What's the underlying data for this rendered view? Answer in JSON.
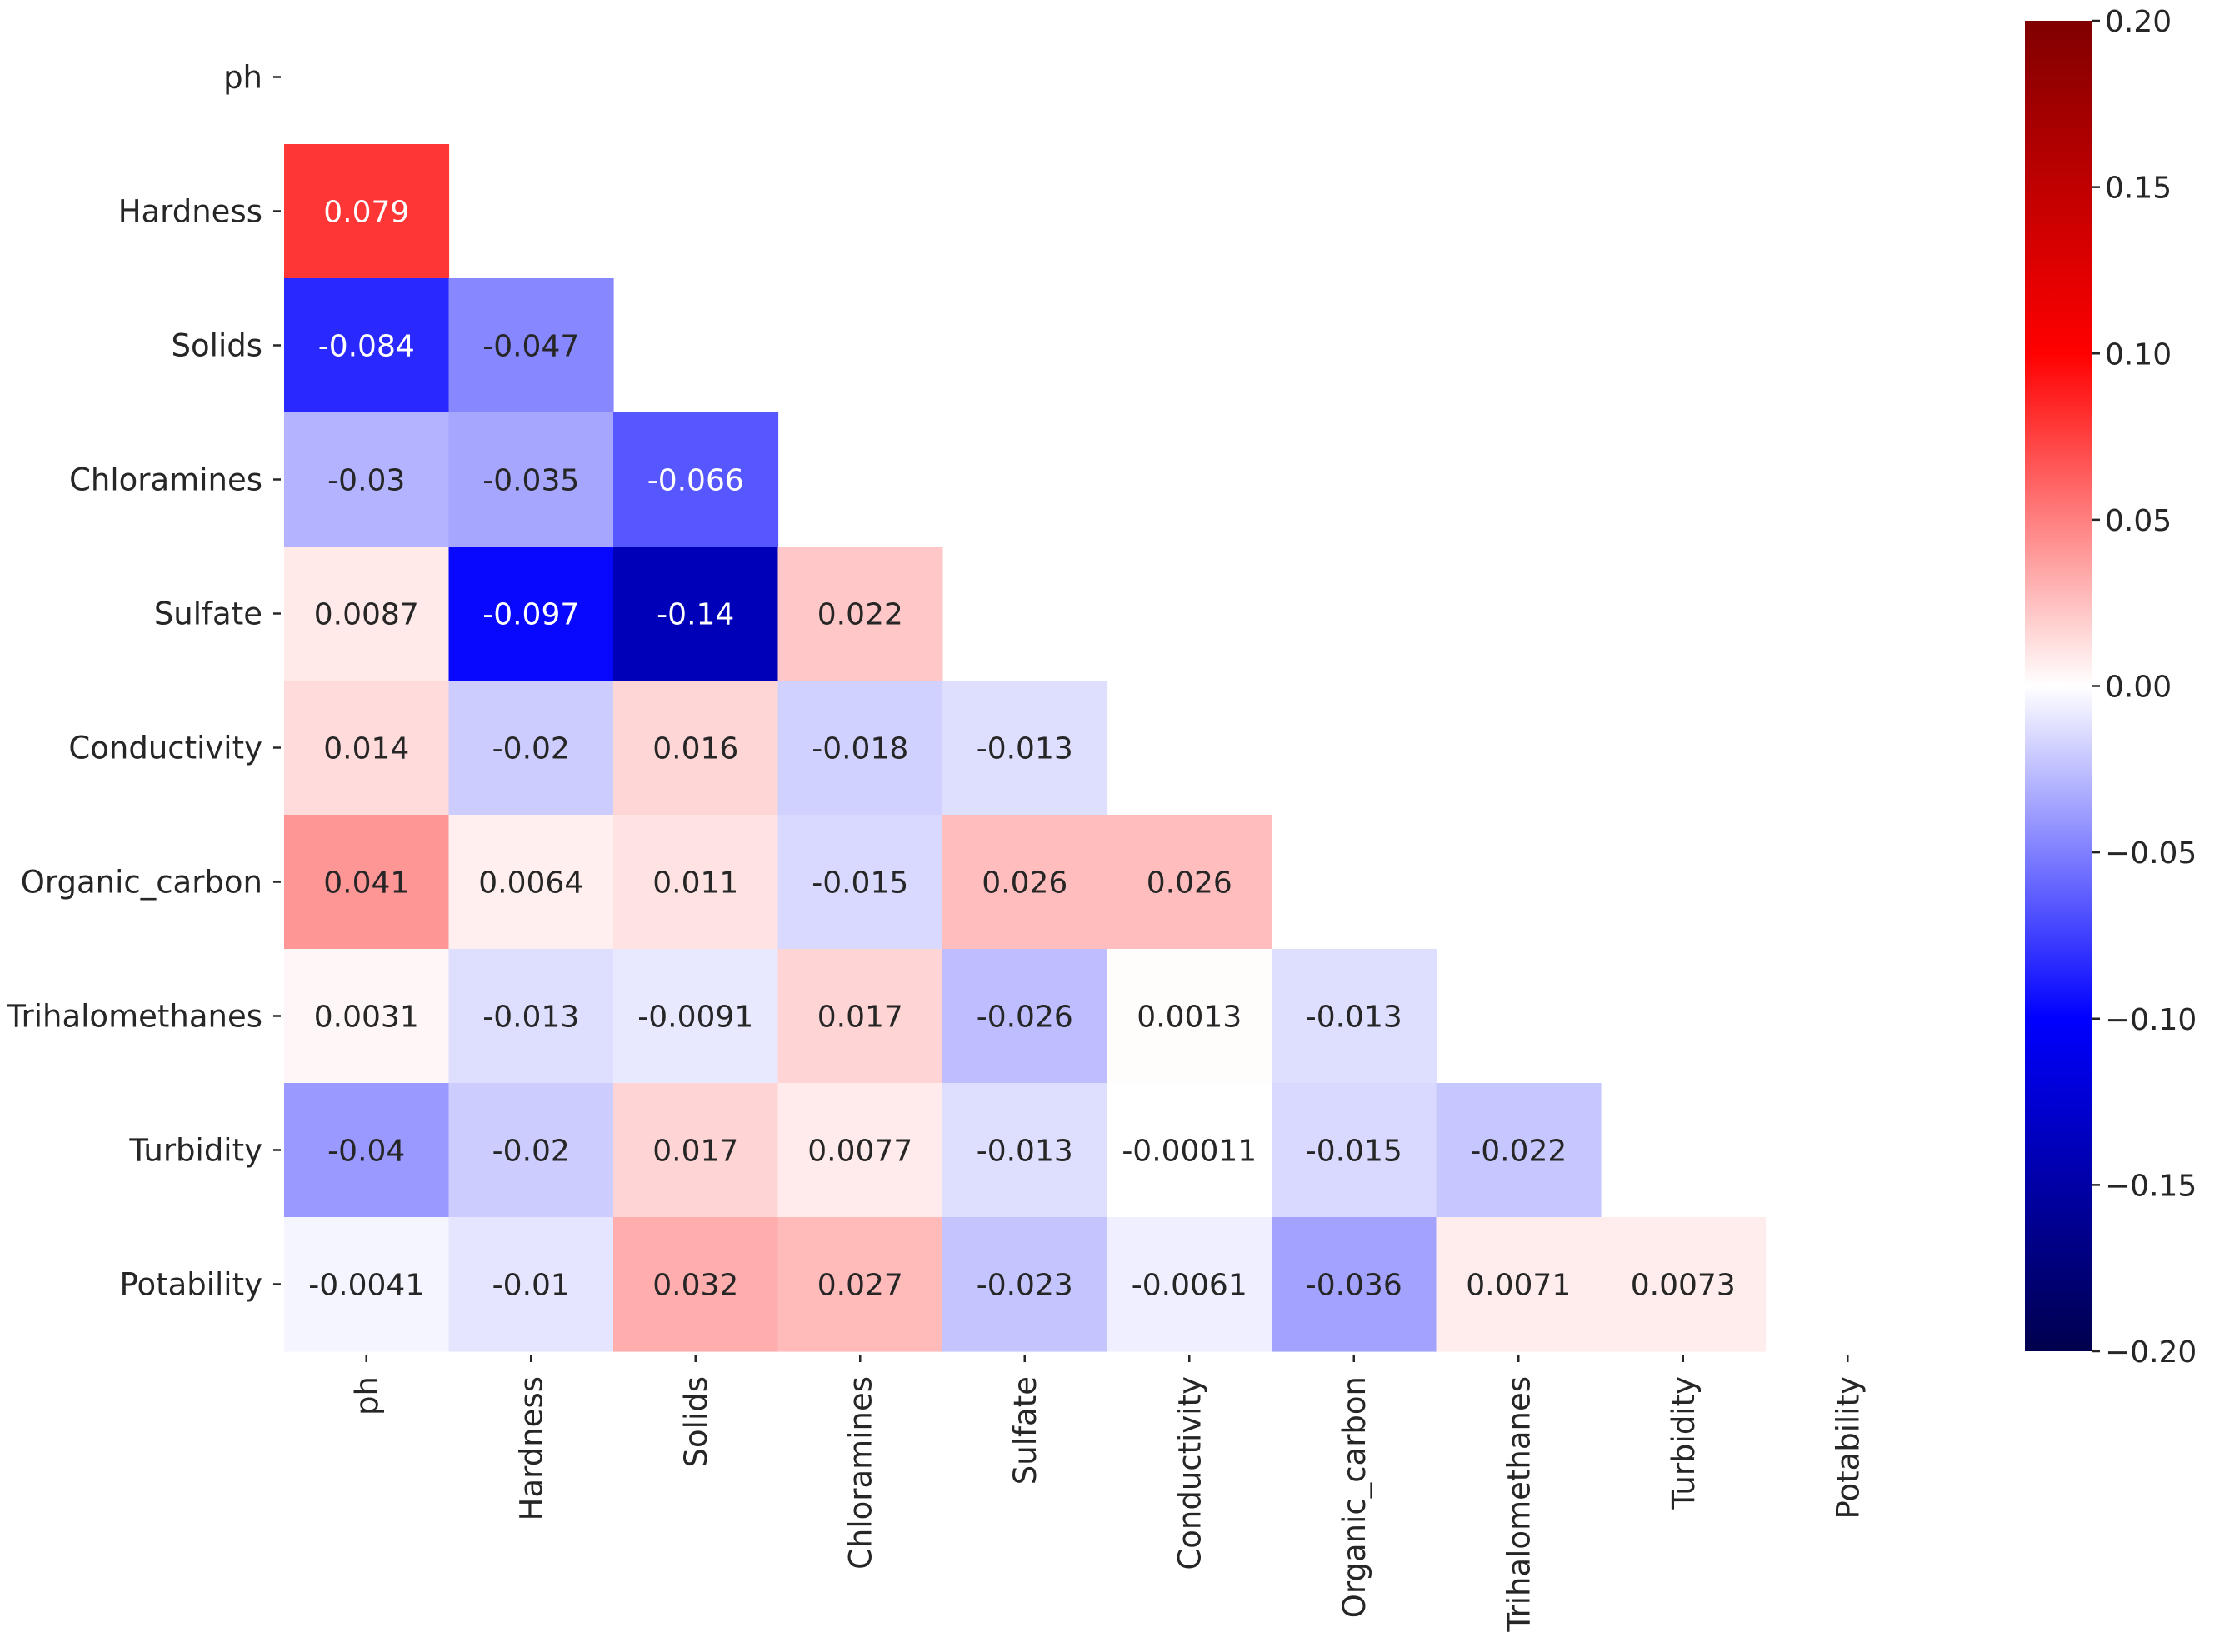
{
  "chart_data": {
    "type": "heatmap",
    "title": "",
    "xlabel": "",
    "ylabel": "",
    "colormap": "seismic",
    "vmin": -0.2,
    "vmax": 0.2,
    "mask": "upper-triangle-including-diagonal",
    "row_labels": [
      "ph",
      "Hardness",
      "Solids",
      "Chloramines",
      "Sulfate",
      "Conductivity",
      "Organic_carbon",
      "Trihalomethanes",
      "Turbidity",
      "Potability"
    ],
    "col_labels": [
      "ph",
      "Hardness",
      "Solids",
      "Chloramines",
      "Sulfate",
      "Conductivity",
      "Organic_carbon",
      "Trihalomethanes",
      "Turbidity",
      "Potability"
    ],
    "values": [
      [],
      [
        0.079
      ],
      [
        -0.084,
        -0.047
      ],
      [
        -0.03,
        -0.035,
        -0.066
      ],
      [
        0.0087,
        -0.097,
        -0.14,
        0.022
      ],
      [
        0.014,
        -0.02,
        0.016,
        -0.018,
        -0.013
      ],
      [
        0.041,
        0.0064,
        0.011,
        -0.015,
        0.026,
        0.026
      ],
      [
        0.0031,
        -0.013,
        -0.0091,
        0.017,
        -0.026,
        0.0013,
        -0.013
      ],
      [
        -0.04,
        -0.02,
        0.017,
        0.0077,
        -0.013,
        -0.00011,
        -0.015,
        -0.022
      ],
      [
        -0.0041,
        -0.01,
        0.032,
        0.027,
        -0.023,
        -0.0061,
        -0.036,
        0.0071,
        0.0073
      ]
    ],
    "value_labels": [
      [],
      [
        "0.079"
      ],
      [
        "-0.084",
        "-0.047"
      ],
      [
        "-0.03",
        "-0.035",
        "-0.066"
      ],
      [
        "0.0087",
        "-0.097",
        "-0.14",
        "0.022"
      ],
      [
        "0.014",
        "-0.02",
        "0.016",
        "-0.018",
        "-0.013"
      ],
      [
        "0.041",
        "0.0064",
        "0.011",
        "-0.015",
        "0.026",
        "0.026"
      ],
      [
        "0.0031",
        "-0.013",
        "-0.0091",
        "0.017",
        "-0.026",
        "0.0013",
        "-0.013"
      ],
      [
        "-0.04",
        "-0.02",
        "0.017",
        "0.0077",
        "-0.013",
        "-0.00011",
        "-0.015",
        "-0.022"
      ],
      [
        "-0.0041",
        "-0.01",
        "0.032",
        "0.027",
        "-0.023",
        "-0.0061",
        "-0.036",
        "0.0071",
        "0.0073"
      ]
    ],
    "colorbar": {
      "ticks": [
        0.2,
        0.15,
        0.1,
        0.05,
        0.0,
        -0.05,
        -0.1,
        -0.15,
        -0.2
      ],
      "tick_labels": [
        "0.20",
        "0.15",
        "0.10",
        "0.05",
        "0.00",
        "−0.05",
        "−0.10",
        "−0.15",
        "−0.20"
      ]
    }
  }
}
